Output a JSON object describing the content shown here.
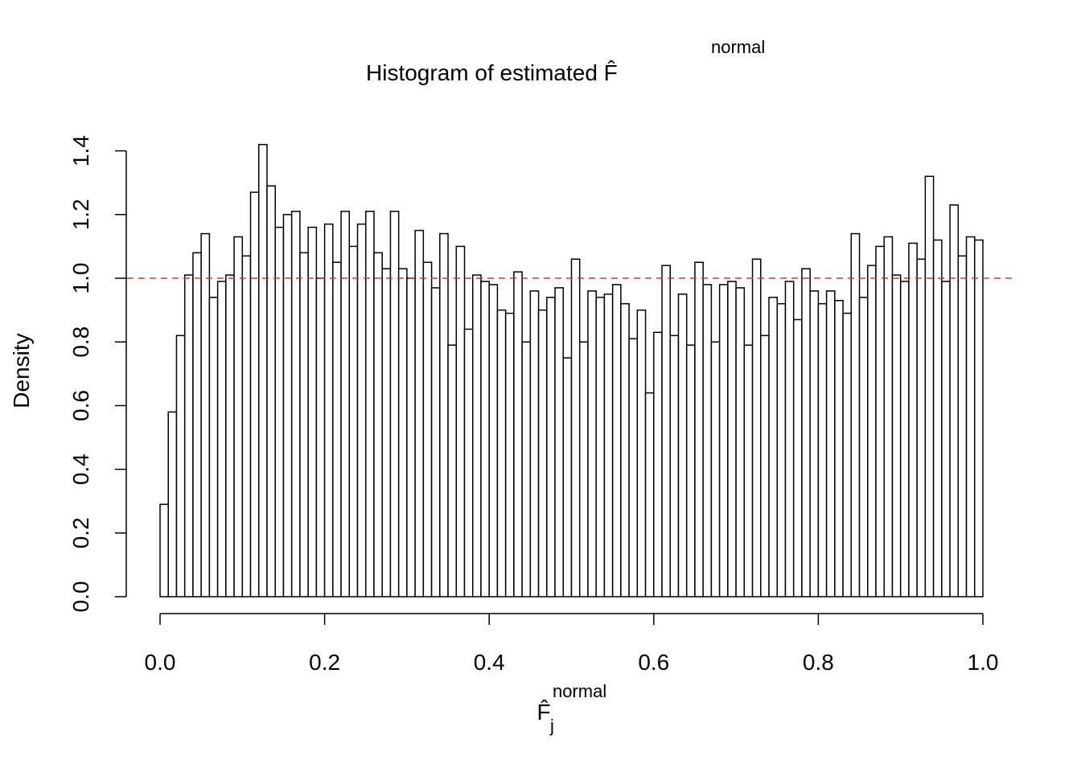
{
  "chart_data": {
    "type": "histogram",
    "title": {
      "text": "Histogram of estimated F̂",
      "superscript": "normal"
    },
    "xlabel": {
      "base": "F̂",
      "superscript": "normal",
      "subscript": "j"
    },
    "ylabel": "Density",
    "bins": [
      0,
      0.01,
      0.02,
      0.03,
      0.04,
      0.05,
      0.06,
      0.07,
      0.08,
      0.09,
      0.1,
      0.11,
      0.12,
      0.13,
      0.14,
      0.15,
      0.16,
      0.17,
      0.18,
      0.19,
      0.2,
      0.21,
      0.22,
      0.23,
      0.24,
      0.25,
      0.26,
      0.27,
      0.28,
      0.29,
      0.3,
      0.31,
      0.32,
      0.33,
      0.34,
      0.35,
      0.36,
      0.37,
      0.38,
      0.39,
      0.4,
      0.41,
      0.42,
      0.43,
      0.44,
      0.45,
      0.46,
      0.47,
      0.48,
      0.49,
      0.5,
      0.51,
      0.52,
      0.53,
      0.54,
      0.55,
      0.56,
      0.57,
      0.58,
      0.59,
      0.6,
      0.61,
      0.62,
      0.63,
      0.64,
      0.65,
      0.66,
      0.67,
      0.68,
      0.69,
      0.7,
      0.71,
      0.72,
      0.73,
      0.74,
      0.75,
      0.76,
      0.77,
      0.78,
      0.79,
      0.8,
      0.81,
      0.82,
      0.83,
      0.84,
      0.85,
      0.86,
      0.87,
      0.88,
      0.89,
      0.9,
      0.91,
      0.92,
      0.93,
      0.94,
      0.95,
      0.96,
      0.97,
      0.98,
      0.99,
      1
    ],
    "values": [
      0.29,
      0.58,
      0.82,
      1.01,
      1.08,
      1.14,
      0.94,
      0.99,
      1.01,
      1.13,
      1.07,
      1.27,
      1.42,
      1.29,
      1.16,
      1.2,
      1.21,
      1.08,
      1.16,
      1.0,
      1.17,
      1.05,
      1.21,
      1.1,
      1.17,
      1.21,
      1.08,
      1.03,
      1.21,
      1.03,
      1.0,
      1.15,
      1.05,
      0.97,
      1.14,
      0.79,
      1.1,
      0.84,
      1.01,
      0.99,
      0.98,
      0.9,
      0.89,
      1.02,
      0.8,
      0.96,
      0.9,
      0.94,
      0.97,
      0.75,
      1.06,
      0.8,
      0.96,
      0.94,
      0.95,
      0.98,
      0.92,
      0.81,
      0.9,
      0.64,
      0.83,
      1.04,
      0.82,
      0.95,
      0.79,
      1.05,
      0.98,
      0.8,
      0.98,
      0.99,
      0.97,
      0.79,
      1.06,
      0.82,
      0.94,
      0.92,
      0.99,
      0.87,
      1.03,
      0.96,
      0.92,
      0.96,
      0.93,
      0.89,
      1.14,
      0.94,
      1.04,
      1.1,
      1.13,
      1.01,
      0.99,
      1.11,
      1.06,
      1.32,
      1.12,
      0.99,
      1.23,
      1.07,
      1.13,
      1.12
    ],
    "color": "#ffffff",
    "edgecolor": "#000000",
    "xlim": [
      0,
      1
    ],
    "ylim": [
      0,
      1.4
    ],
    "xticks": [
      {
        "value": 0,
        "label": "0.0"
      },
      {
        "value": 0.2,
        "label": "0.2"
      },
      {
        "value": 0.4,
        "label": "0.4"
      },
      {
        "value": 0.6,
        "label": "0.6"
      },
      {
        "value": 0.8,
        "label": "0.8"
      },
      {
        "value": 1,
        "label": "1.0"
      }
    ],
    "yticks": [
      {
        "value": 0,
        "label": "0.0"
      },
      {
        "value": 0.2,
        "label": "0.2"
      },
      {
        "value": 0.4,
        "label": "0.4"
      },
      {
        "value": 0.6,
        "label": "0.6"
      },
      {
        "value": 0.8,
        "label": "0.8"
      },
      {
        "value": 1,
        "label": "1.0"
      },
      {
        "value": 1.2,
        "label": "1.2"
      },
      {
        "value": 1.4,
        "label": "1.4"
      }
    ],
    "hline": {
      "value": 1,
      "color": "#e0302a",
      "style": "dashed"
    }
  }
}
